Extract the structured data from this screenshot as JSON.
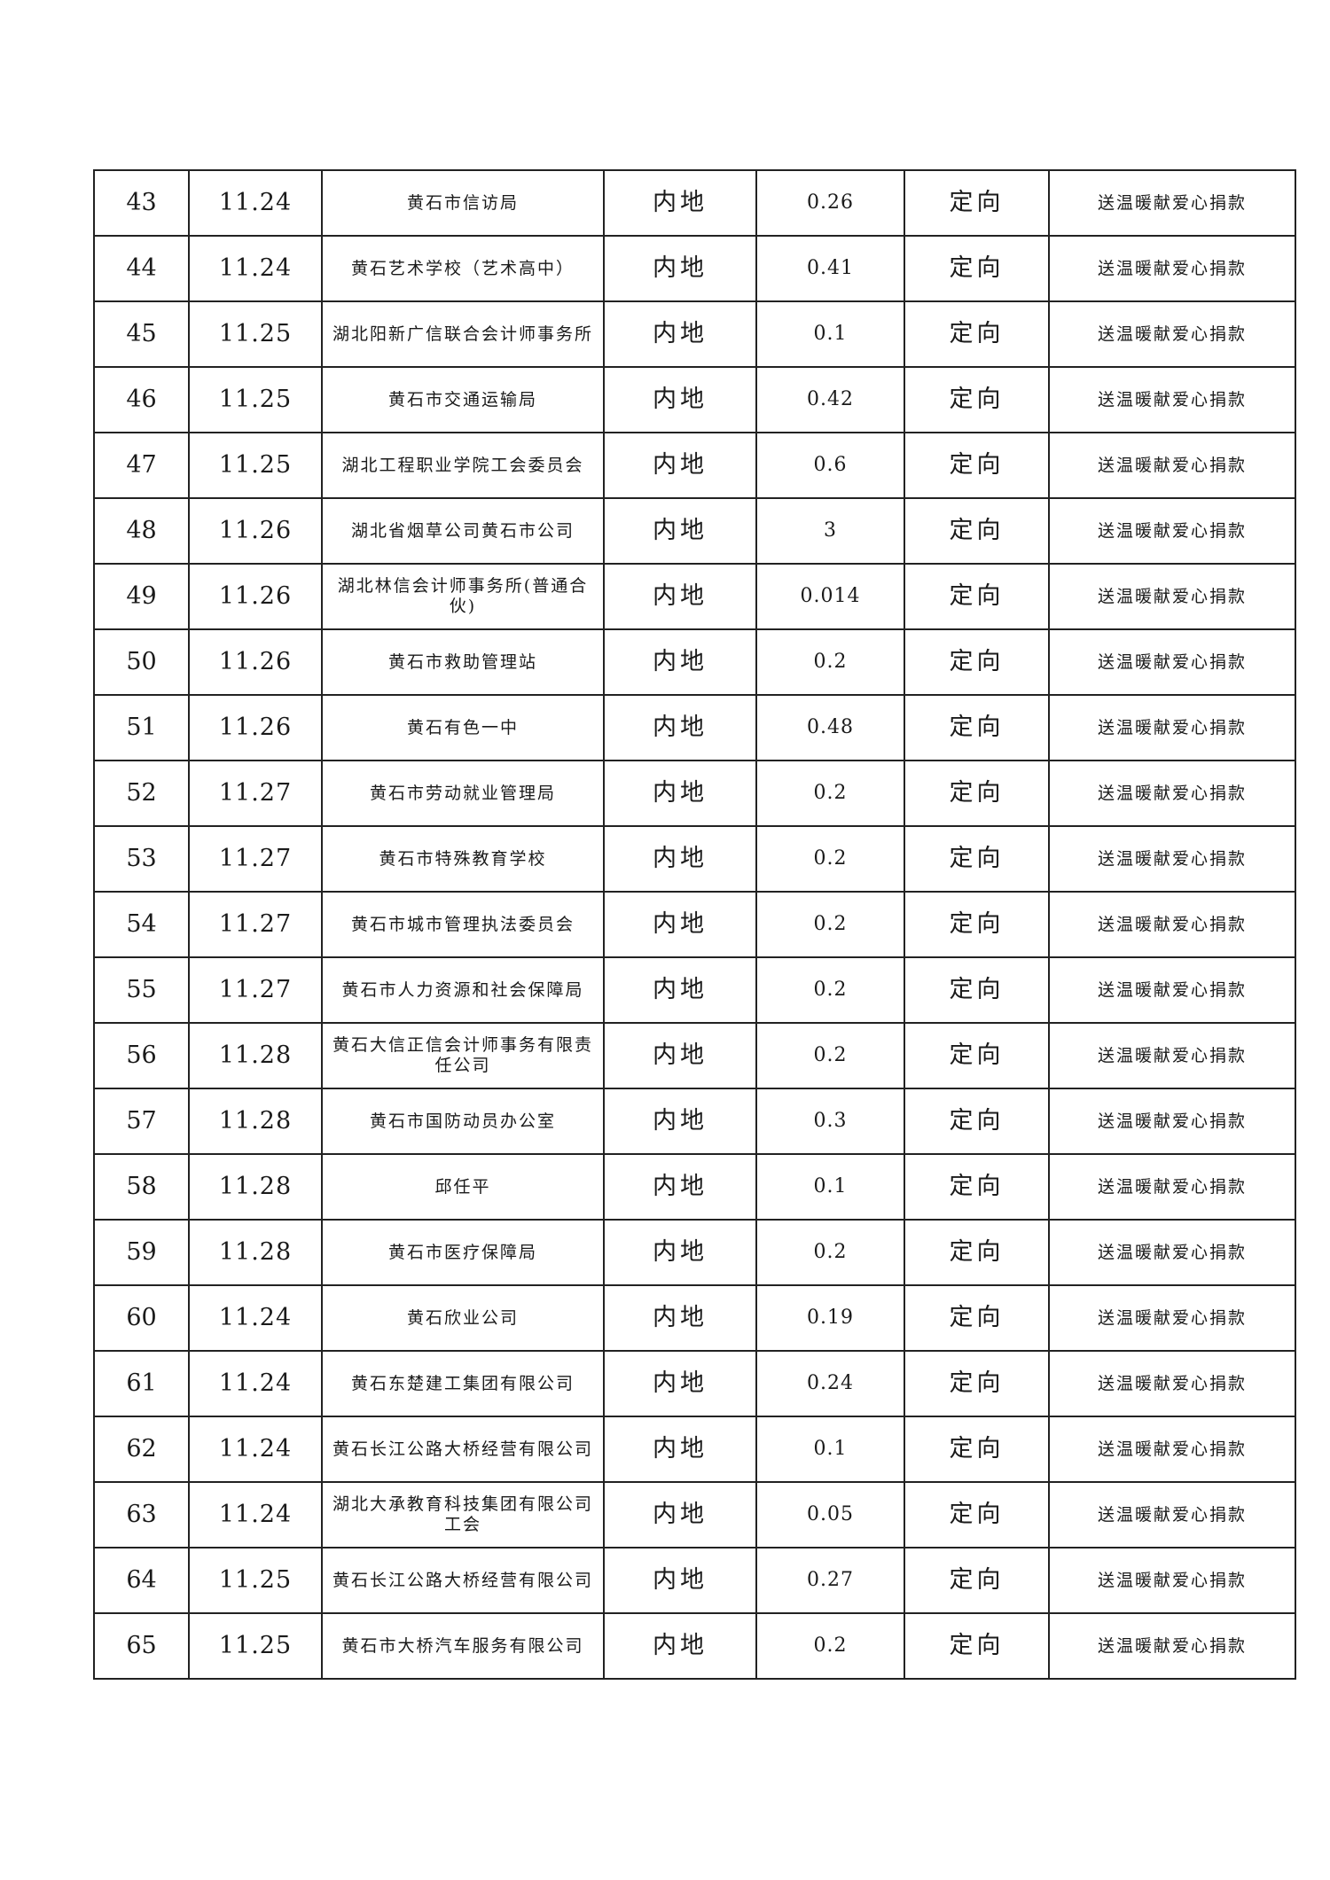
{
  "table": {
    "rows": [
      {
        "no": "43",
        "date": "11.24",
        "donor": "黄石市信访局",
        "region": "内地",
        "amount": "0.26",
        "type": "定向",
        "purpose": "送温暖献爱心捐款"
      },
      {
        "no": "44",
        "date": "11.24",
        "donor": "黄石艺术学校（艺术高中）",
        "region": "内地",
        "amount": "0.41",
        "type": "定向",
        "purpose": "送温暖献爱心捐款"
      },
      {
        "no": "45",
        "date": "11.25",
        "donor": "湖北阳新广信联合会计师事务所",
        "region": "内地",
        "amount": "0.1",
        "type": "定向",
        "purpose": "送温暖献爱心捐款"
      },
      {
        "no": "46",
        "date": "11.25",
        "donor": "黄石市交通运输局",
        "region": "内地",
        "amount": "0.42",
        "type": "定向",
        "purpose": "送温暖献爱心捐款"
      },
      {
        "no": "47",
        "date": "11.25",
        "donor": "湖北工程职业学院工会委员会",
        "region": "内地",
        "amount": "0.6",
        "type": "定向",
        "purpose": "送温暖献爱心捐款"
      },
      {
        "no": "48",
        "date": "11.26",
        "donor": "湖北省烟草公司黄石市公司",
        "region": "内地",
        "amount": "3",
        "type": "定向",
        "purpose": "送温暖献爱心捐款"
      },
      {
        "no": "49",
        "date": "11.26",
        "donor": "湖北林信会计师事务所(普通合伙)",
        "region": "内地",
        "amount": "0.014",
        "type": "定向",
        "purpose": "送温暖献爱心捐款"
      },
      {
        "no": "50",
        "date": "11.26",
        "donor": "黄石市救助管理站",
        "region": "内地",
        "amount": "0.2",
        "type": "定向",
        "purpose": "送温暖献爱心捐款"
      },
      {
        "no": "51",
        "date": "11.26",
        "donor": "黄石有色一中",
        "region": "内地",
        "amount": "0.48",
        "type": "定向",
        "purpose": "送温暖献爱心捐款"
      },
      {
        "no": "52",
        "date": "11.27",
        "donor": "黄石市劳动就业管理局",
        "region": "内地",
        "amount": "0.2",
        "type": "定向",
        "purpose": "送温暖献爱心捐款"
      },
      {
        "no": "53",
        "date": "11.27",
        "donor": "黄石市特殊教育学校",
        "region": "内地",
        "amount": "0.2",
        "type": "定向",
        "purpose": "送温暖献爱心捐款"
      },
      {
        "no": "54",
        "date": "11.27",
        "donor": "黄石市城市管理执法委员会",
        "region": "内地",
        "amount": "0.2",
        "type": "定向",
        "purpose": "送温暖献爱心捐款"
      },
      {
        "no": "55",
        "date": "11.27",
        "donor": "黄石市人力资源和社会保障局",
        "region": "内地",
        "amount": "0.2",
        "type": "定向",
        "purpose": "送温暖献爱心捐款"
      },
      {
        "no": "56",
        "date": "11.28",
        "donor": "黄石大信正信会计师事务有限责任公司",
        "region": "内地",
        "amount": "0.2",
        "type": "定向",
        "purpose": "送温暖献爱心捐款"
      },
      {
        "no": "57",
        "date": "11.28",
        "donor": "黄石市国防动员办公室",
        "region": "内地",
        "amount": "0.3",
        "type": "定向",
        "purpose": "送温暖献爱心捐款"
      },
      {
        "no": "58",
        "date": "11.28",
        "donor": "邱任平",
        "region": "内地",
        "amount": "0.1",
        "type": "定向",
        "purpose": "送温暖献爱心捐款"
      },
      {
        "no": "59",
        "date": "11.28",
        "donor": "黄石市医疗保障局",
        "region": "内地",
        "amount": "0.2",
        "type": "定向",
        "purpose": "送温暖献爱心捐款"
      },
      {
        "no": "60",
        "date": "11.24",
        "donor": "黄石欣业公司",
        "region": "内地",
        "amount": "0.19",
        "type": "定向",
        "purpose": "送温暖献爱心捐款"
      },
      {
        "no": "61",
        "date": "11.24",
        "donor": "黄石东楚建工集团有限公司",
        "region": "内地",
        "amount": "0.24",
        "type": "定向",
        "purpose": "送温暖献爱心捐款"
      },
      {
        "no": "62",
        "date": "11.24",
        "donor": "黄石长江公路大桥经营有限公司",
        "region": "内地",
        "amount": "0.1",
        "type": "定向",
        "purpose": "送温暖献爱心捐款"
      },
      {
        "no": "63",
        "date": "11.24",
        "donor": "湖北大承教育科技集团有限公司工会",
        "region": "内地",
        "amount": "0.05",
        "type": "定向",
        "purpose": "送温暖献爱心捐款"
      },
      {
        "no": "64",
        "date": "11.25",
        "donor": "黄石长江公路大桥经营有限公司",
        "region": "内地",
        "amount": "0.27",
        "type": "定向",
        "purpose": "送温暖献爱心捐款"
      },
      {
        "no": "65",
        "date": "11.25",
        "donor": "黄石市大桥汽车服务有限公司",
        "region": "内地",
        "amount": "0.2",
        "type": "定向",
        "purpose": "送温暖献爱心捐款"
      }
    ]
  }
}
